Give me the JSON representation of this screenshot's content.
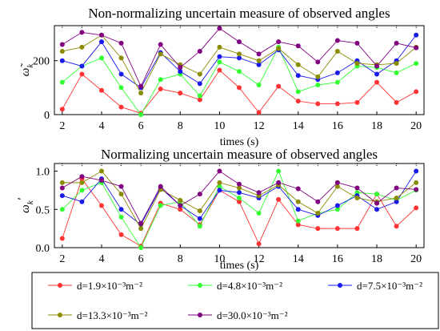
{
  "chart_data": [
    {
      "type": "line",
      "title": "Non-normalizing uncertain measure of observed angles",
      "xlabel": "times (s)",
      "ylabel": "ω̃",
      "ylabel_sub": "k",
      "x": [
        2,
        3,
        4,
        5,
        6,
        7,
        8,
        9,
        10,
        11,
        12,
        13,
        14,
        15,
        16,
        17,
        18,
        19,
        20
      ],
      "xlim": [
        1.6,
        20.4
      ],
      "ylim": [
        0,
        330
      ],
      "xticks": [
        2,
        4,
        6,
        8,
        10,
        12,
        14,
        16,
        18,
        20
      ],
      "yticks": [
        0,
        200
      ],
      "series": [
        {
          "name": "d=1.9×10⁻³m⁻²",
          "color": "#ff3333",
          "values": [
            20,
            150,
            90,
            28,
            5,
            95,
            80,
            55,
            165,
            100,
            8,
            105,
            50,
            40,
            40,
            45,
            120,
            45,
            85
          ]
        },
        {
          "name": "d=4.8×10⁻³m⁻²",
          "color": "#33ff33",
          "values": [
            120,
            180,
            210,
            100,
            0,
            130,
            150,
            70,
            195,
            160,
            110,
            250,
            85,
            110,
            120,
            180,
            175,
            155,
            190
          ]
        },
        {
          "name": "d=7.5×10⁻³m⁻²",
          "color": "#1a1aee",
          "values": [
            200,
            180,
            270,
            150,
            100,
            230,
            160,
            115,
            215,
            210,
            185,
            240,
            145,
            130,
            155,
            200,
            150,
            200,
            295
          ]
        },
        {
          "name": "d=13.3×10⁻³m⁻²",
          "color": "#8b8b00",
          "values": [
            235,
            250,
            295,
            210,
            80,
            225,
            185,
            150,
            250,
            225,
            200,
            245,
            185,
            140,
            235,
            190,
            185,
            190,
            250
          ]
        },
        {
          "name": "d=30.0×10⁻³m⁻²",
          "color": "#800080",
          "values": [
            260,
            305,
            295,
            265,
            105,
            260,
            175,
            235,
            320,
            270,
            225,
            270,
            255,
            195,
            275,
            265,
            180,
            265,
            248
          ]
        }
      ]
    },
    {
      "type": "line",
      "title": "Normalizing uncertain measure of observed angles",
      "xlabel": "times (s)",
      "ylabel": "ω",
      "ylabel_sub": "k",
      "ylabel_sup": "′",
      "x": [
        2,
        3,
        4,
        5,
        6,
        7,
        8,
        9,
        10,
        11,
        12,
        13,
        14,
        15,
        16,
        17,
        18,
        19,
        20
      ],
      "xlim": [
        1.6,
        20.4
      ],
      "ylim": [
        0,
        1.1
      ],
      "xticks": [
        2,
        4,
        6,
        8,
        10,
        12,
        14,
        16,
        18,
        20
      ],
      "yticks": [
        0.0,
        0.5,
        1.0
      ],
      "ytick_labels": [
        "0.0",
        "0.5",
        "1.0"
      ],
      "series": [
        {
          "name": "d=1.9×10⁻³m⁻²",
          "color": "#ff3333",
          "values": [
            0.12,
            0.9,
            0.55,
            0.17,
            0.02,
            0.58,
            0.5,
            0.3,
            0.75,
            0.6,
            0.05,
            0.63,
            0.3,
            0.25,
            0.25,
            0.25,
            0.7,
            0.28,
            0.52
          ]
        },
        {
          "name": "d=4.8×10⁻³m⁻²",
          "color": "#33ff33",
          "values": [
            0.5,
            0.75,
            0.85,
            0.4,
            0.0,
            0.55,
            0.6,
            0.28,
            0.8,
            0.65,
            0.45,
            1.0,
            0.35,
            0.45,
            0.5,
            0.72,
            0.7,
            0.62,
            0.75
          ]
        },
        {
          "name": "d=7.5×10⁻³m⁻²",
          "color": "#1a1aee",
          "values": [
            0.68,
            0.6,
            0.9,
            0.5,
            0.3,
            0.78,
            0.55,
            0.38,
            0.75,
            0.72,
            0.65,
            0.8,
            0.5,
            0.42,
            0.55,
            0.68,
            0.5,
            0.6,
            1.0
          ]
        },
        {
          "name": "d=13.3×10⁻³m⁻²",
          "color": "#8b8b00",
          "values": [
            0.85,
            0.85,
            1.0,
            0.7,
            0.25,
            0.76,
            0.62,
            0.48,
            0.85,
            0.78,
            0.68,
            0.82,
            0.6,
            0.45,
            0.8,
            0.65,
            0.6,
            0.65,
            0.85
          ]
        },
        {
          "name": "d=30.0×10⁻³m⁻²",
          "color": "#800080",
          "values": [
            0.78,
            0.93,
            0.88,
            0.8,
            0.32,
            0.8,
            0.55,
            0.7,
            1.0,
            0.83,
            0.72,
            0.85,
            0.77,
            0.6,
            0.85,
            0.78,
            0.58,
            0.78,
            0.76
          ]
        }
      ]
    }
  ],
  "legend": {
    "entries": [
      "d=1.9×10⁻³m⁻²",
      "d=4.8×10⁻³m⁻²",
      "d=7.5×10⁻³m⁻²",
      "d=13.3×10⁻³m⁻²",
      "d=30.0×10⁻³m⁻²"
    ],
    "colors": [
      "#ff3333",
      "#33ff33",
      "#1a1aee",
      "#8b8b00",
      "#800080"
    ]
  }
}
